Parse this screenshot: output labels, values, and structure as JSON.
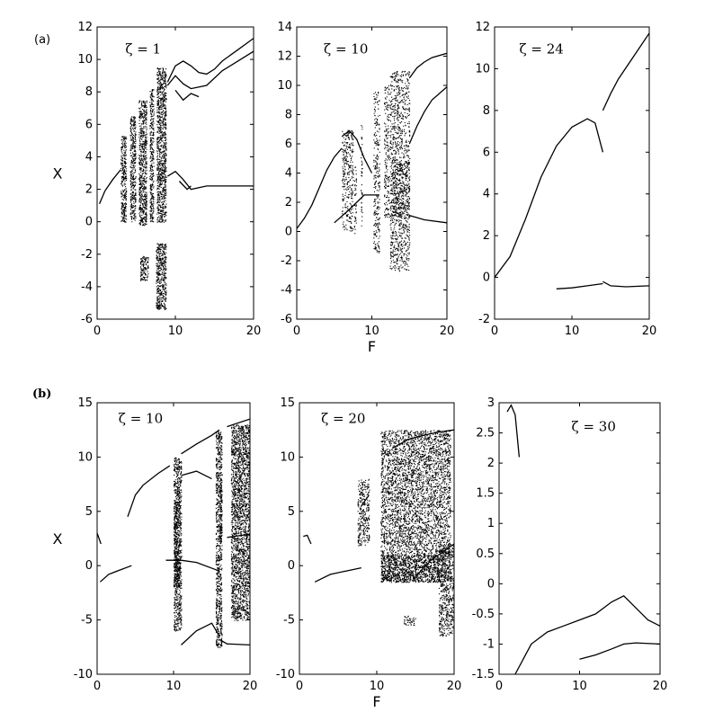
{
  "figure": {
    "label_a": "(a)",
    "label_b": "(b)"
  },
  "chart_data": [
    {
      "type": "scatter",
      "id": "a1",
      "title": "ζ = 1",
      "xlabel": "",
      "ylabel": "X",
      "xlim": [
        0,
        20
      ],
      "ylim": [
        -6,
        12
      ],
      "xticks": [
        0,
        10,
        20
      ],
      "yticks": [
        -6,
        -4,
        -2,
        0,
        2,
        4,
        6,
        8,
        10,
        12
      ],
      "curves": [
        [
          [
            0.3,
            1.1
          ],
          [
            1,
            1.9
          ],
          [
            2,
            2.6
          ],
          [
            3,
            3.2
          ]
        ],
        [
          [
            9,
            8.6
          ],
          [
            10,
            9.6
          ],
          [
            11,
            9.9
          ],
          [
            12,
            9.6
          ],
          [
            13,
            9.2
          ],
          [
            14,
            9.1
          ],
          [
            15,
            9.4
          ],
          [
            16,
            9.9
          ],
          [
            18,
            10.6
          ],
          [
            20,
            11.3
          ]
        ],
        [
          [
            9,
            8.4
          ],
          [
            10,
            9.0
          ],
          [
            11,
            8.5
          ],
          [
            12,
            8.2
          ],
          [
            14,
            8.4
          ],
          [
            16,
            9.3
          ],
          [
            18,
            9.9
          ],
          [
            20,
            10.5
          ]
        ],
        [
          [
            9,
            2.8
          ],
          [
            10,
            3.1
          ],
          [
            11,
            2.6
          ],
          [
            12,
            2.0
          ],
          [
            14,
            2.2
          ],
          [
            16,
            2.2
          ],
          [
            20,
            2.2
          ]
        ],
        [
          [
            10,
            8.1
          ],
          [
            11,
            7.5
          ],
          [
            12,
            7.9
          ],
          [
            13,
            7.7
          ]
        ],
        [
          [
            10.5,
            2.5
          ],
          [
            11.5,
            2.0
          ],
          [
            12,
            2.2
          ]
        ]
      ],
      "bands": [
        [
          3,
          3.7,
          0,
          5.3
        ],
        [
          4.2,
          4.9,
          0,
          6.5
        ],
        [
          5.3,
          6.3,
          -0.2,
          7.5
        ],
        [
          6.7,
          7.2,
          0,
          8.2
        ],
        [
          7.6,
          8.8,
          0,
          9.5
        ],
        [
          5.5,
          6.5,
          -3.6,
          -2.1
        ],
        [
          7.5,
          8.8,
          -5.4,
          -1.3
        ]
      ],
      "band_density": 0.55
    },
    {
      "type": "scatter",
      "id": "a2",
      "title": "ζ = 10",
      "xlabel": "F",
      "ylabel": "",
      "xlim": [
        0,
        20
      ],
      "ylim": [
        -6,
        14
      ],
      "xticks": [
        0,
        10,
        20
      ],
      "yticks": [
        -6,
        -4,
        -2,
        0,
        2,
        4,
        6,
        8,
        10,
        12,
        14
      ],
      "curves": [
        [
          [
            0,
            0.2
          ],
          [
            1,
            0.9
          ],
          [
            2,
            1.8
          ],
          [
            3,
            3.0
          ],
          [
            4,
            4.2
          ],
          [
            5,
            5.1
          ],
          [
            6,
            5.7
          ]
        ],
        [
          [
            6,
            6.5
          ],
          [
            7,
            6.9
          ],
          [
            8,
            6.3
          ],
          [
            9,
            5.0
          ],
          [
            10,
            4.0
          ]
        ],
        [
          [
            15,
            10.5
          ],
          [
            16,
            11.2
          ],
          [
            17,
            11.6
          ],
          [
            18,
            11.9
          ],
          [
            20,
            12.2
          ]
        ],
        [
          [
            15,
            6.0
          ],
          [
            16,
            7.2
          ],
          [
            17,
            8.2
          ],
          [
            18,
            9.0
          ],
          [
            20,
            9.9
          ]
        ],
        [
          [
            5,
            0.6
          ],
          [
            7,
            1.5
          ],
          [
            9,
            2.5
          ],
          [
            11,
            2.5
          ]
        ],
        [
          [
            15,
            1.1
          ],
          [
            17,
            0.8
          ],
          [
            20,
            0.6
          ]
        ]
      ],
      "bands": [
        [
          6,
          7.5,
          0,
          7
        ],
        [
          7.6,
          7.9,
          -0.1,
          4.5
        ],
        [
          8.5,
          8.7,
          0,
          7.5
        ],
        [
          10.2,
          11,
          -1.5,
          9.6
        ],
        [
          11.6,
          12.3,
          1,
          10
        ],
        [
          12.4,
          15,
          -2.7,
          11
        ],
        [
          12.5,
          15,
          1,
          4.8
        ]
      ],
      "band_density": 0.22
    },
    {
      "type": "line",
      "id": "a3",
      "title": "ζ = 24",
      "xlabel": "",
      "ylabel": "",
      "xlim": [
        0,
        20
      ],
      "ylim": [
        -2,
        12
      ],
      "xticks": [
        0,
        10,
        20
      ],
      "yticks": [
        -2,
        0,
        2,
        4,
        6,
        8,
        10,
        12
      ],
      "curves": [
        [
          [
            0,
            0
          ],
          [
            2,
            1
          ],
          [
            4,
            2.8
          ],
          [
            6,
            4.8
          ],
          [
            8,
            6.3
          ],
          [
            10,
            7.2
          ],
          [
            12,
            7.6
          ],
          [
            13,
            7.4
          ],
          [
            14,
            6.0
          ]
        ],
        [
          [
            14,
            8.0
          ],
          [
            15,
            8.8
          ],
          [
            16,
            9.5
          ],
          [
            18,
            10.6
          ],
          [
            20,
            11.7
          ]
        ],
        [
          [
            8,
            -0.55
          ],
          [
            10,
            -0.5
          ],
          [
            12,
            -0.4
          ],
          [
            14,
            -0.3
          ]
        ],
        [
          [
            14,
            -0.2
          ],
          [
            15,
            -0.4
          ],
          [
            17,
            -0.45
          ],
          [
            20,
            -0.4
          ]
        ]
      ],
      "bands": [],
      "band_density": 0
    },
    {
      "type": "scatter",
      "id": "b1",
      "title": "ζ = 10",
      "xlabel": "",
      "ylabel": "X",
      "xlim": [
        0,
        20
      ],
      "ylim": [
        -10,
        15
      ],
      "xticks": [
        0,
        10,
        20
      ],
      "yticks": [
        -10,
        -5,
        0,
        5,
        10,
        15
      ],
      "curves": [
        [
          [
            0.4,
            -1.5
          ],
          [
            1.5,
            -0.8
          ],
          [
            3,
            -0.4
          ],
          [
            4.5,
            0
          ]
        ],
        [
          [
            4,
            4.5
          ],
          [
            5,
            6.5
          ],
          [
            6,
            7.4
          ],
          [
            8,
            8.5
          ],
          [
            9.5,
            9.2
          ]
        ],
        [
          [
            11,
            10.3
          ],
          [
            13,
            11.2
          ],
          [
            15,
            12.0
          ],
          [
            16,
            12.5
          ]
        ],
        [
          [
            11,
            8.3
          ],
          [
            13,
            8.7
          ],
          [
            15,
            8.0
          ]
        ],
        [
          [
            9,
            0.5
          ],
          [
            11,
            0.5
          ],
          [
            13,
            0.3
          ],
          [
            16,
            -0.5
          ]
        ],
        [
          [
            11,
            -7.3
          ],
          [
            13,
            -6.0
          ],
          [
            15,
            -5.3
          ],
          [
            16,
            -6.5
          ]
        ],
        [
          [
            16,
            -6.8
          ],
          [
            17,
            -7.2
          ],
          [
            20,
            -7.3
          ]
        ],
        [
          [
            17,
            12.8
          ],
          [
            20,
            13.5
          ]
        ],
        [
          [
            17,
            2.6
          ],
          [
            20,
            2.9
          ]
        ],
        [
          [
            0,
            3
          ],
          [
            0.5,
            2
          ]
        ]
      ],
      "bands": [
        [
          10,
          11,
          -6,
          10
        ],
        [
          15.5,
          16.3,
          -7.5,
          12.4
        ],
        [
          17.5,
          20,
          -5,
          13
        ],
        [
          10,
          10.8,
          -2,
          6
        ],
        [
          16,
          16.3,
          2,
          8
        ]
      ],
      "band_density": 0.5
    },
    {
      "type": "scatter",
      "id": "b2",
      "title": "ζ = 20",
      "xlabel": "F",
      "ylabel": "",
      "xlim": [
        0,
        20
      ],
      "ylim": [
        -10,
        15
      ],
      "xticks": [
        0,
        10,
        20
      ],
      "yticks": [
        -10,
        -5,
        0,
        5,
        10,
        15
      ],
      "curves": [
        [
          [
            0.5,
            2.7
          ],
          [
            1,
            2.8
          ],
          [
            1.5,
            2.0
          ]
        ],
        [
          [
            2,
            -1.5
          ],
          [
            4,
            -0.8
          ],
          [
            6,
            -0.5
          ],
          [
            8,
            -0.2
          ]
        ],
        [
          [
            8,
            5.5
          ],
          [
            9,
            6.5
          ]
        ],
        [
          [
            12,
            10.8
          ],
          [
            14,
            11.6
          ],
          [
            16,
            12.0
          ],
          [
            18,
            12.3
          ],
          [
            20,
            12.5
          ]
        ],
        [
          [
            15,
            -1
          ],
          [
            17,
            0.5
          ],
          [
            20,
            2
          ]
        ]
      ],
      "bands": [
        [
          7.5,
          9,
          1.8,
          8
        ],
        [
          10.5,
          19.5,
          -1.5,
          12.5
        ],
        [
          10.5,
          18,
          -1.5,
          1
        ],
        [
          18,
          20,
          -6.5,
          2
        ],
        [
          13.5,
          15,
          -5.5,
          -4.6
        ]
      ],
      "band_density": 0.32
    },
    {
      "type": "line",
      "id": "b3",
      "title": "ζ = 30",
      "xlabel": "",
      "ylabel": "",
      "xlim": [
        0,
        20
      ],
      "ylim": [
        -1.5,
        3
      ],
      "xticks": [
        0,
        10,
        20
      ],
      "yticks": [
        -1.5,
        -1,
        -0.5,
        0,
        0.5,
        1,
        1.5,
        2,
        2.5,
        3
      ],
      "curves": [
        [
          [
            1,
            2.85
          ],
          [
            1.5,
            2.96
          ],
          [
            2,
            2.8
          ],
          [
            2.5,
            2.1
          ]
        ],
        [
          [
            2,
            -1.5
          ],
          [
            4,
            -1.0
          ],
          [
            6,
            -0.8
          ],
          [
            8,
            -0.7
          ],
          [
            10,
            -0.6
          ],
          [
            12,
            -0.5
          ],
          [
            14,
            -0.3
          ],
          [
            15.5,
            -0.2
          ],
          [
            17,
            -0.4
          ],
          [
            18.5,
            -0.6
          ],
          [
            20,
            -0.7
          ]
        ],
        [
          [
            10,
            -1.25
          ],
          [
            12,
            -1.18
          ],
          [
            14,
            -1.08
          ],
          [
            15.5,
            -1.0
          ],
          [
            17,
            -0.98
          ],
          [
            20,
            -1.0
          ]
        ]
      ],
      "bands": [],
      "band_density": 0
    }
  ]
}
